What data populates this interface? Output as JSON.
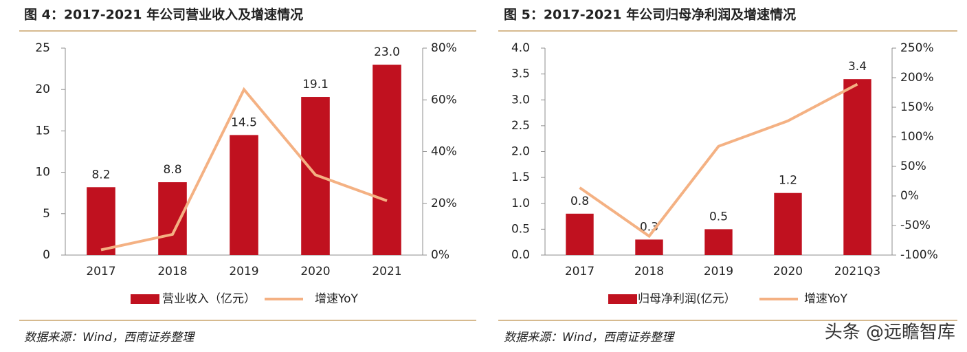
{
  "chart_data": [
    {
      "type": "bar",
      "title": "图 4：2017-2021 年公司营业收入及增速情况",
      "source": "数据来源：Wind，西南证券整理",
      "categories": [
        "2017",
        "2018",
        "2019",
        "2020",
        "2021"
      ],
      "series": [
        {
          "name": "营业收入（亿元）",
          "type": "bar",
          "color": "#c0111f",
          "values": [
            8.2,
            8.8,
            14.5,
            19.1,
            23.0
          ],
          "value_labels": [
            "8.2",
            "8.8",
            "14.5",
            "19.1",
            "23.0"
          ]
        },
        {
          "name": "增速YoY",
          "type": "line",
          "axis": "y2",
          "color": "#f4b183",
          "values": [
            2,
            8,
            64,
            31,
            21
          ]
        }
      ],
      "ylim": [
        0,
        25
      ],
      "yticks": [
        0,
        5,
        10,
        15,
        20,
        25
      ],
      "y2lim": [
        0,
        80
      ],
      "y2ticks": [
        {
          "value": 0,
          "label": "0%"
        },
        {
          "value": 20,
          "label": "20%"
        },
        {
          "value": 40,
          "label": "40%"
        },
        {
          "value": 60,
          "label": "60%"
        },
        {
          "value": 80,
          "label": "80%"
        }
      ],
      "grid": false
    },
    {
      "type": "bar",
      "title": "图 5：2017-2021 年公司归母净利润及增速情况",
      "source": "数据来源：Wind，西南证券整理",
      "categories": [
        "2017",
        "2018",
        "2019",
        "2020",
        "2021Q3"
      ],
      "series": [
        {
          "name": "归母净利润(亿元）",
          "type": "bar",
          "color": "#c0111f",
          "values": [
            0.8,
            0.3,
            0.5,
            1.2,
            3.4
          ]
        },
        {
          "name": "增速YoY",
          "type": "line",
          "axis": "y2",
          "color": "#f4b183",
          "values": [
            14,
            -68,
            84,
            127,
            189
          ]
        }
      ],
      "ylim": [
        0,
        4
      ],
      "yticks": [
        {
          "value": 0,
          "label": "0.0"
        },
        0.5,
        {
          "value": 1,
          "label": "1.0"
        },
        1.5,
        {
          "value": 2,
          "label": "2.0"
        },
        2.5,
        {
          "value": 3,
          "label": "3.0"
        },
        3.5,
        {
          "value": 4,
          "label": "4.0"
        }
      ],
      "y2lim": [
        -100,
        250
      ],
      "y2ticks": [
        {
          "value": -100,
          "label": "-100%"
        },
        {
          "value": -50,
          "label": "-50%"
        },
        {
          "value": 0,
          "label": "0%"
        },
        {
          "value": 50,
          "label": "50%"
        },
        {
          "value": 100,
          "label": "100%"
        },
        {
          "value": 150,
          "label": "150%"
        },
        {
          "value": 200,
          "label": "200%"
        },
        {
          "value": 250,
          "label": "250%"
        }
      ],
      "grid": false
    }
  ],
  "watermark": "头条 @远瞻智库"
}
